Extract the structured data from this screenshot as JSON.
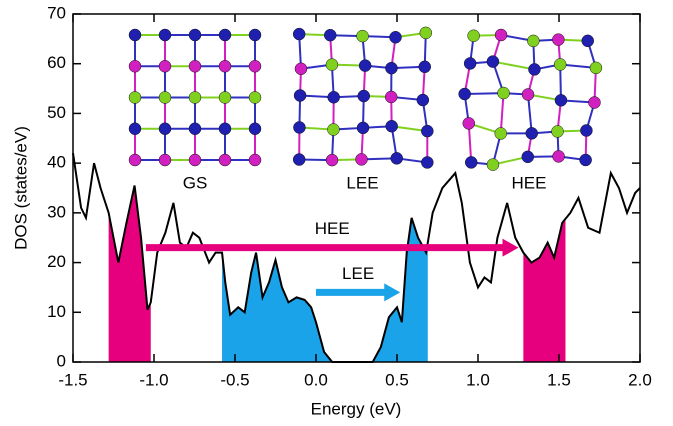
{
  "chart_data": {
    "type": "line",
    "x_label": "Energy (eV)",
    "y_label": "DOS (states/eV)",
    "xlim": [
      -1.5,
      2.0
    ],
    "ylim": [
      0,
      70
    ],
    "xticks": [
      -1.5,
      {
        "value": -1.0,
        "label": "-1.0"
      },
      -0.5,
      {
        "value": 0.0,
        "label": "0.0"
      },
      0.5,
      {
        "value": 1.0,
        "label": "1.0"
      },
      1.5,
      {
        "value": 2.0,
        "label": "2.0"
      }
    ],
    "yticks": [
      0,
      10,
      20,
      30,
      40,
      50,
      60,
      70
    ],
    "color": "#000000",
    "x": [
      -1.5,
      -1.45,
      -1.42,
      -1.37,
      -1.33,
      -1.28,
      -1.22,
      -1.17,
      -1.12,
      -1.08,
      -1.04,
      -1.02,
      -0.98,
      -0.93,
      -0.88,
      -0.84,
      -0.8,
      -0.76,
      -0.72,
      -0.66,
      -0.62,
      -0.58,
      -0.56,
      -0.53,
      -0.48,
      -0.44,
      -0.4,
      -0.37,
      -0.33,
      -0.29,
      -0.25,
      -0.21,
      -0.17,
      -0.12,
      -0.07,
      -0.03,
      0.0,
      0.05,
      0.1,
      0.35,
      0.4,
      0.45,
      0.5,
      0.53,
      0.56,
      0.59,
      0.63,
      0.68,
      0.72,
      0.78,
      0.86,
      0.9,
      0.95,
      1.0,
      1.04,
      1.08,
      1.12,
      1.18,
      1.23,
      1.28,
      1.33,
      1.38,
      1.43,
      1.47,
      1.52,
      1.57,
      1.62,
      1.68,
      1.75,
      1.82,
      1.87,
      1.92,
      1.97,
      2.0
    ],
    "values": [
      42,
      31,
      29,
      40,
      35,
      30,
      20,
      28,
      35.5,
      25,
      10.5,
      12,
      22,
      26,
      32,
      24,
      23,
      26,
      25,
      20,
      22,
      22,
      16,
      9.5,
      11,
      10,
      18,
      22,
      13,
      16,
      20.5,
      15,
      12,
      13,
      12.5,
      11,
      8,
      2,
      0,
      0,
      3,
      9,
      11,
      8,
      22,
      29,
      25,
      22,
      30,
      35,
      38,
      32,
      20,
      15,
      17,
      16,
      25,
      32,
      25,
      22,
      20,
      21,
      24,
      21,
      28,
      30,
      33,
      27,
      26,
      38,
      35,
      30,
      34,
      35
    ],
    "fills": [
      {
        "from": -1.28,
        "to": -1.02,
        "color": "#e6007e"
      },
      {
        "from": -0.58,
        "to": 0.1,
        "color": "#1aa3e8"
      },
      {
        "from": 0.35,
        "to": 0.69,
        "color": "#1aa3e8"
      },
      {
        "from": 1.28,
        "to": 1.54,
        "color": "#e6007e"
      }
    ],
    "arrows": [
      {
        "label": "HEE",
        "color": "#e6007e",
        "from": -1.05,
        "to": 1.25,
        "y": 23
      },
      {
        "label": "LEE",
        "color": "#1aa3e8",
        "from": 0.0,
        "to": 0.52,
        "y": 14
      }
    ],
    "insets": [
      {
        "label": "GS",
        "color": "#000000"
      },
      {
        "label": "LEE",
        "color": "#1aa3e8"
      },
      {
        "label": "HEE",
        "color": "#e6007e"
      }
    ]
  }
}
